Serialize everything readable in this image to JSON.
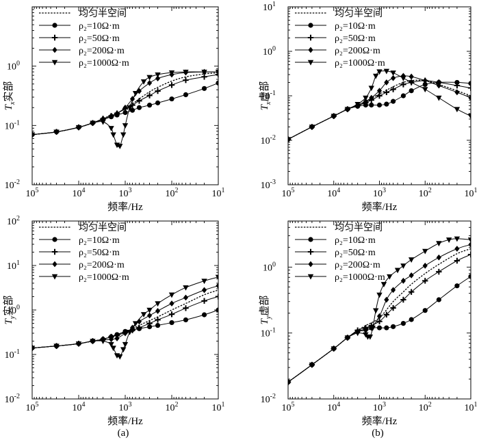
{
  "figure_captions": [
    "(a)",
    "(b)"
  ],
  "legend": {
    "uniform": "均匀半空间",
    "r10": "ρ₂=10Ω·m",
    "r50": "ρ₂=50Ω·m",
    "r200": "ρ₂=200Ω·m",
    "r1000": "ρ₂=1000Ω·m"
  },
  "chart_data": [
    {
      "id": "txr",
      "type": "line",
      "title": "",
      "xlabel": "频率/Hz",
      "ylabel": "Tx实部",
      "ylabel_main": "T",
      "ylabel_sub": "x",
      "ylabel_rest": "实部",
      "x_scale": "log",
      "y_scale": "log",
      "x_reversed": true,
      "xlim": [
        100000,
        10
      ],
      "ylim": [
        0.01,
        10
      ],
      "x_ticks": [
        {
          "v": 100000,
          "b": "10",
          "e": "5"
        },
        {
          "v": 10000,
          "b": "10",
          "e": "4"
        },
        {
          "v": 1000,
          "b": "10",
          "e": "3"
        },
        {
          "v": 100,
          "b": "10",
          "e": "2"
        },
        {
          "v": 10,
          "b": "10",
          "e": "1"
        }
      ],
      "y_ticks": [
        {
          "v": 0.01,
          "b": "10",
          "e": "-2"
        },
        {
          "v": 0.1,
          "b": "10",
          "e": "-1"
        },
        {
          "v": 1,
          "b": "10",
          "e": "0"
        }
      ],
      "series": [
        {
          "name": "均匀半空间",
          "marker": "none",
          "dashed": true,
          "x": [
            100000,
            30000,
            10000,
            5000,
            3000,
            2000,
            1000,
            500,
            300,
            200,
            100,
            50,
            20,
            10
          ],
          "y": [
            0.07,
            0.078,
            0.093,
            0.11,
            0.13,
            0.15,
            0.19,
            0.28,
            0.37,
            0.44,
            0.56,
            0.66,
            0.74,
            0.77
          ]
        },
        {
          "name": "ρ₂=10Ω·m",
          "marker": "circle",
          "dashed": false,
          "x": [
            100000,
            30000,
            10000,
            5000,
            3000,
            2000,
            1500,
            1000,
            700,
            500,
            300,
            200,
            100,
            50,
            20,
            10
          ],
          "y": [
            0.07,
            0.078,
            0.093,
            0.11,
            0.125,
            0.14,
            0.15,
            0.165,
            0.18,
            0.2,
            0.22,
            0.24,
            0.28,
            0.33,
            0.42,
            0.52
          ]
        },
        {
          "name": "ρ₂=50Ω·m",
          "marker": "plus",
          "dashed": false,
          "x": [
            100000,
            30000,
            10000,
            5000,
            3000,
            2000,
            1500,
            1000,
            700,
            500,
            300,
            200,
            100,
            50,
            20,
            10
          ],
          "y": [
            0.07,
            0.078,
            0.093,
            0.11,
            0.13,
            0.145,
            0.16,
            0.19,
            0.22,
            0.26,
            0.32,
            0.38,
            0.48,
            0.58,
            0.66,
            0.72
          ]
        },
        {
          "name": "ρ₂=200Ω·m",
          "marker": "diamond",
          "dashed": false,
          "x": [
            100000,
            30000,
            10000,
            5000,
            3000,
            2000,
            1500,
            1000,
            700,
            500,
            300,
            200,
            100,
            50,
            20,
            10
          ],
          "y": [
            0.07,
            0.078,
            0.093,
            0.11,
            0.13,
            0.145,
            0.16,
            0.2,
            0.28,
            0.38,
            0.52,
            0.62,
            0.72,
            0.78,
            0.8,
            0.8
          ]
        },
        {
          "name": "ρ₂=1000Ω·m",
          "marker": "triangle",
          "dashed": false,
          "x": [
            100000,
            30000,
            10000,
            5000,
            3000,
            2000,
            1800,
            1500,
            1300,
            1100,
            1000,
            800,
            600,
            400,
            300,
            200,
            100,
            50,
            20,
            10
          ],
          "y": [
            0.07,
            0.078,
            0.093,
            0.11,
            0.115,
            0.09,
            0.07,
            0.047,
            0.045,
            0.07,
            0.1,
            0.2,
            0.35,
            0.55,
            0.65,
            0.72,
            0.78,
            0.8,
            0.8,
            0.8
          ]
        }
      ]
    },
    {
      "id": "txi",
      "type": "line",
      "title": "",
      "xlabel": "频率/Hz",
      "ylabel": "Tx虚部",
      "ylabel_main": "T",
      "ylabel_sub": "x",
      "ylabel_rest": "虚部",
      "x_scale": "log",
      "y_scale": "log",
      "x_reversed": true,
      "xlim": [
        100000,
        10
      ],
      "ylim": [
        0.001,
        10
      ],
      "x_ticks": [
        {
          "v": 100000,
          "b": "10",
          "e": "5"
        },
        {
          "v": 10000,
          "b": "10",
          "e": "4"
        },
        {
          "v": 1000,
          "b": "10",
          "e": "3"
        },
        {
          "v": 100,
          "b": "10",
          "e": "2"
        },
        {
          "v": 10,
          "b": "10",
          "e": "1"
        }
      ],
      "y_ticks": [
        {
          "v": 0.001,
          "b": "10",
          "e": "-3"
        },
        {
          "v": 0.01,
          "b": "10",
          "e": "-2"
        },
        {
          "v": 0.1,
          "b": "10",
          "e": "-1"
        },
        {
          "v": 1,
          "b": "10",
          "e": "0"
        },
        {
          "v": 10,
          "b": "10",
          "e": "1"
        }
      ],
      "series": [
        {
          "name": "均匀半空间",
          "marker": "none",
          "dashed": true,
          "x": [
            100000,
            30000,
            10000,
            5000,
            3000,
            2000,
            1000,
            500,
            300,
            200,
            100,
            50,
            20,
            10
          ],
          "y": [
            0.0105,
            0.02,
            0.035,
            0.05,
            0.06,
            0.075,
            0.11,
            0.16,
            0.2,
            0.22,
            0.22,
            0.18,
            0.13,
            0.1
          ]
        },
        {
          "name": "ρ₂=10Ω·m",
          "marker": "circle",
          "dashed": false,
          "x": [
            100000,
            30000,
            10000,
            5000,
            3000,
            2000,
            1500,
            1000,
            700,
            500,
            300,
            200,
            100,
            50,
            20,
            10
          ],
          "y": [
            0.0105,
            0.02,
            0.035,
            0.05,
            0.058,
            0.062,
            0.062,
            0.062,
            0.065,
            0.075,
            0.1,
            0.13,
            0.18,
            0.2,
            0.2,
            0.19
          ]
        },
        {
          "name": "ρ₂=50Ω·m",
          "marker": "plus",
          "dashed": false,
          "x": [
            100000,
            30000,
            10000,
            5000,
            3000,
            2000,
            1500,
            1000,
            700,
            500,
            300,
            200,
            100,
            50,
            20,
            10
          ],
          "y": [
            0.0105,
            0.02,
            0.035,
            0.05,
            0.06,
            0.07,
            0.08,
            0.1,
            0.12,
            0.14,
            0.18,
            0.2,
            0.22,
            0.2,
            0.17,
            0.15
          ]
        },
        {
          "name": "ρ₂=200Ω·m",
          "marker": "diamond",
          "dashed": false,
          "x": [
            100000,
            30000,
            10000,
            5000,
            3000,
            2000,
            1500,
            1000,
            700,
            500,
            300,
            200,
            100,
            50,
            20,
            10
          ],
          "y": [
            0.0105,
            0.02,
            0.035,
            0.05,
            0.062,
            0.075,
            0.09,
            0.13,
            0.2,
            0.25,
            0.28,
            0.27,
            0.22,
            0.17,
            0.12,
            0.09
          ]
        },
        {
          "name": "ρ₂=1000Ω·m",
          "marker": "triangle",
          "dashed": false,
          "x": [
            100000,
            30000,
            10000,
            5000,
            3000,
            2000,
            1500,
            1200,
            1000,
            700,
            500,
            300,
            200,
            100,
            50,
            20,
            10
          ],
          "y": [
            0.0105,
            0.02,
            0.035,
            0.05,
            0.065,
            0.09,
            0.15,
            0.28,
            0.35,
            0.36,
            0.33,
            0.25,
            0.2,
            0.14,
            0.09,
            0.05,
            0.035
          ]
        }
      ]
    },
    {
      "id": "tyr",
      "type": "line",
      "title": "",
      "xlabel": "频率/Hz",
      "ylabel": "Ty实部",
      "ylabel_main": "T",
      "ylabel_sub": "y",
      "ylabel_rest": "实部",
      "x_scale": "log",
      "y_scale": "log",
      "x_reversed": true,
      "xlim": [
        100000,
        10
      ],
      "ylim": [
        0.01,
        100
      ],
      "x_ticks": [
        {
          "v": 100000,
          "b": "10",
          "e": "5"
        },
        {
          "v": 10000,
          "b": "10",
          "e": "4"
        },
        {
          "v": 1000,
          "b": "10",
          "e": "3"
        },
        {
          "v": 100,
          "b": "10",
          "e": "2"
        },
        {
          "v": 10,
          "b": "10",
          "e": "1"
        }
      ],
      "y_ticks": [
        {
          "v": 0.01,
          "b": "10",
          "e": "-2"
        },
        {
          "v": 0.1,
          "b": "10",
          "e": "-1"
        },
        {
          "v": 1,
          "b": "10",
          "e": "0"
        },
        {
          "v": 10,
          "b": "10",
          "e": "1"
        },
        {
          "v": 100,
          "b": "10",
          "e": "2"
        }
      ],
      "series": [
        {
          "name": "均匀半空间",
          "marker": "none",
          "dashed": true,
          "x": [
            100000,
            30000,
            10000,
            5000,
            3000,
            2000,
            1000,
            500,
            300,
            200,
            100,
            50,
            20,
            10
          ],
          "y": [
            0.14,
            0.155,
            0.175,
            0.2,
            0.22,
            0.25,
            0.32,
            0.45,
            0.58,
            0.7,
            1.0,
            1.4,
            2.2,
            2.8
          ]
        },
        {
          "name": "ρ₂=10Ω·m",
          "marker": "circle",
          "dashed": false,
          "x": [
            100000,
            30000,
            10000,
            5000,
            3000,
            2000,
            1500,
            1000,
            700,
            500,
            300,
            200,
            100,
            50,
            20,
            10
          ],
          "y": [
            0.14,
            0.155,
            0.175,
            0.2,
            0.22,
            0.25,
            0.28,
            0.33,
            0.36,
            0.38,
            0.42,
            0.45,
            0.52,
            0.6,
            0.78,
            1.0
          ]
        },
        {
          "name": "ρ₂=50Ω·m",
          "marker": "plus",
          "dashed": false,
          "x": [
            100000,
            30000,
            10000,
            5000,
            3000,
            2000,
            1500,
            1000,
            700,
            500,
            300,
            200,
            100,
            50,
            20,
            10
          ],
          "y": [
            0.14,
            0.155,
            0.175,
            0.2,
            0.22,
            0.25,
            0.27,
            0.31,
            0.35,
            0.4,
            0.5,
            0.6,
            0.8,
            1.1,
            1.6,
            2.0
          ]
        },
        {
          "name": "ρ₂=200Ω·m",
          "marker": "diamond",
          "dashed": false,
          "x": [
            100000,
            30000,
            10000,
            5000,
            3000,
            2000,
            1500,
            1000,
            700,
            500,
            300,
            200,
            100,
            50,
            20,
            10
          ],
          "y": [
            0.14,
            0.155,
            0.175,
            0.2,
            0.21,
            0.22,
            0.23,
            0.3,
            0.4,
            0.55,
            0.75,
            0.95,
            1.4,
            1.9,
            2.8,
            3.5
          ]
        },
        {
          "name": "ρ₂=1000Ω·m",
          "marker": "triangle",
          "dashed": false,
          "x": [
            100000,
            30000,
            10000,
            5000,
            3000,
            2000,
            1800,
            1500,
            1300,
            1100,
            1000,
            800,
            600,
            400,
            300,
            200,
            100,
            50,
            20,
            10
          ],
          "y": [
            0.14,
            0.155,
            0.175,
            0.2,
            0.2,
            0.17,
            0.14,
            0.095,
            0.09,
            0.13,
            0.17,
            0.32,
            0.5,
            0.8,
            1.0,
            1.4,
            2.2,
            3.2,
            4.5,
            5.5
          ]
        }
      ]
    },
    {
      "id": "tyi",
      "type": "line",
      "title": "",
      "xlabel": "频率/Hz",
      "ylabel": "Ty虚部",
      "ylabel_main": "T",
      "ylabel_sub": "y",
      "ylabel_rest": "虚部",
      "x_scale": "log",
      "y_scale": "log",
      "x_reversed": true,
      "xlim": [
        100000,
        10
      ],
      "ylim": [
        0.01,
        5
      ],
      "x_ticks": [
        {
          "v": 100000,
          "b": "10",
          "e": "5"
        },
        {
          "v": 10000,
          "b": "10",
          "e": "4"
        },
        {
          "v": 1000,
          "b": "10",
          "e": "3"
        },
        {
          "v": 100,
          "b": "10",
          "e": "2"
        },
        {
          "v": 10,
          "b": "10",
          "e": "1"
        }
      ],
      "y_ticks": [
        {
          "v": 0.01,
          "b": "10",
          "e": "-2"
        },
        {
          "v": 0.1,
          "b": "10",
          "e": "-1"
        },
        {
          "v": 1,
          "b": "10",
          "e": "0"
        }
      ],
      "series": [
        {
          "name": "均匀半空间",
          "marker": "none",
          "dashed": true,
          "x": [
            100000,
            30000,
            10000,
            5000,
            3000,
            2000,
            1000,
            500,
            300,
            200,
            100,
            50,
            20,
            10
          ],
          "y": [
            0.018,
            0.033,
            0.058,
            0.085,
            0.11,
            0.13,
            0.17,
            0.3,
            0.42,
            0.55,
            0.8,
            1.1,
            1.6,
            1.9
          ]
        },
        {
          "name": "ρ₂=10Ω·m",
          "marker": "circle",
          "dashed": false,
          "x": [
            100000,
            30000,
            10000,
            5000,
            3000,
            2000,
            1500,
            1000,
            700,
            500,
            300,
            200,
            100,
            50,
            20,
            10
          ],
          "y": [
            0.018,
            0.033,
            0.058,
            0.085,
            0.105,
            0.115,
            0.12,
            0.12,
            0.12,
            0.125,
            0.14,
            0.16,
            0.22,
            0.32,
            0.52,
            0.72
          ]
        },
        {
          "name": "ρ₂=50Ω·m",
          "marker": "plus",
          "dashed": false,
          "x": [
            100000,
            30000,
            10000,
            5000,
            3000,
            2000,
            1500,
            1000,
            700,
            500,
            300,
            200,
            100,
            50,
            20,
            10
          ],
          "y": [
            0.018,
            0.033,
            0.058,
            0.085,
            0.11,
            0.12,
            0.13,
            0.15,
            0.19,
            0.24,
            0.32,
            0.42,
            0.62,
            0.85,
            1.25,
            1.55
          ]
        },
        {
          "name": "ρ₂=200Ω·m",
          "marker": "diamond",
          "dashed": false,
          "x": [
            100000,
            30000,
            10000,
            5000,
            3000,
            2000,
            1500,
            1000,
            700,
            500,
            300,
            200,
            100,
            50,
            20,
            10
          ],
          "y": [
            0.018,
            0.033,
            0.058,
            0.085,
            0.105,
            0.11,
            0.12,
            0.18,
            0.32,
            0.45,
            0.62,
            0.75,
            1.05,
            1.4,
            1.9,
            2.2
          ]
        },
        {
          "name": "ρ₂=1000Ω·m",
          "marker": "triangle",
          "dashed": false,
          "x": [
            100000,
            30000,
            10000,
            5000,
            3000,
            2000,
            1800,
            1600,
            1400,
            1200,
            1000,
            800,
            600,
            400,
            300,
            200,
            100,
            50,
            30,
            20,
            10
          ],
          "y": [
            0.018,
            0.033,
            0.058,
            0.085,
            0.1,
            0.095,
            0.088,
            0.088,
            0.12,
            0.22,
            0.38,
            0.55,
            0.72,
            0.9,
            1.05,
            1.3,
            1.75,
            2.3,
            2.6,
            2.7,
            2.6
          ]
        }
      ]
    }
  ]
}
